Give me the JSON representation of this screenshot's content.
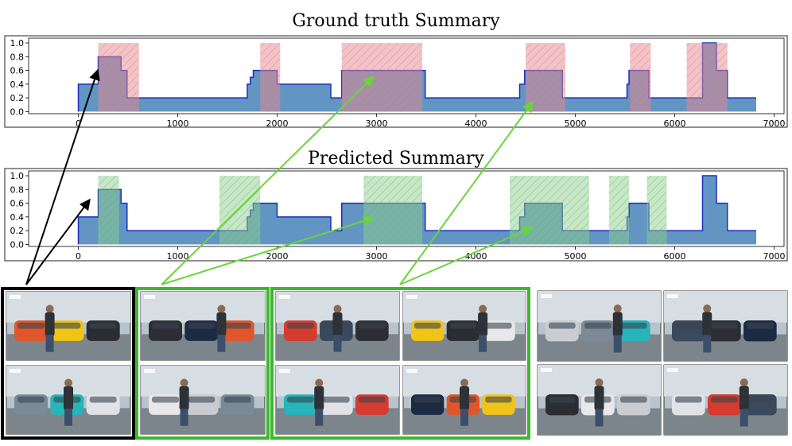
{
  "chart_data": [
    {
      "type": "step",
      "title": "Ground truth Summary",
      "xlabel": "",
      "ylabel": "",
      "xlim": [
        -500,
        7100
      ],
      "ylim": [
        -0.03,
        1.07
      ],
      "xticks": [
        0,
        1000,
        2000,
        3000,
        4000,
        5000,
        6000,
        7000
      ],
      "yticks": [
        0.0,
        0.2,
        0.4,
        0.6,
        0.8,
        1.0
      ],
      "ytick_labels": [
        "0.0",
        "0.2",
        "0.4",
        "0.6",
        "0.8",
        "1.0"
      ],
      "xtick_labels": [
        "0",
        "1000",
        "2000",
        "3000",
        "4000",
        "5000",
        "6000",
        "7000"
      ],
      "grid": false,
      "score_series": {
        "x": [
          0,
          200,
          430,
          490,
          1700,
          1730,
          1760,
          1790,
          2000,
          2060,
          2540,
          2600,
          2650,
          3490,
          4440,
          4490,
          4870,
          5520,
          5540,
          5740,
          6280,
          6310,
          6420,
          6520,
          6530,
          6820
        ],
        "y": [
          0.4,
          0.8,
          0.6,
          0.2,
          0.4,
          0.5,
          0.6,
          0.6,
          0.4,
          0.4,
          0.2,
          0.2,
          0.6,
          0.2,
          0.4,
          0.6,
          0.2,
          0.4,
          0.6,
          0.2,
          1.0,
          1.0,
          0.6,
          0.6,
          0.2,
          0.2
        ]
      },
      "selected_segments": [
        [
          200,
          610
        ],
        [
          1830,
          2030
        ],
        [
          2650,
          3460
        ],
        [
          4500,
          4900
        ],
        [
          5550,
          5760
        ],
        [
          6120,
          6530
        ]
      ],
      "segment_color": "#e8898f"
    },
    {
      "type": "step",
      "title": "Predicted Summary",
      "xlabel": "",
      "ylabel": "",
      "xlim": [
        -500,
        7100
      ],
      "ylim": [
        -0.03,
        1.07
      ],
      "xticks": [
        0,
        1000,
        2000,
        3000,
        4000,
        5000,
        6000,
        7000
      ],
      "yticks": [
        0.0,
        0.2,
        0.4,
        0.6,
        0.8,
        1.0
      ],
      "ytick_labels": [
        "0.0",
        "0.2",
        "0.4",
        "0.6",
        "0.8",
        "1.0"
      ],
      "xtick_labels": [
        "0",
        "1000",
        "2000",
        "3000",
        "4000",
        "5000",
        "6000",
        "7000"
      ],
      "grid": false,
      "score_series": {
        "x": [
          0,
          200,
          430,
          490,
          1700,
          1730,
          1760,
          1790,
          2000,
          2060,
          2540,
          2600,
          2650,
          3490,
          4440,
          4490,
          4870,
          5520,
          5540,
          5740,
          6280,
          6310,
          6420,
          6520,
          6530,
          6820
        ],
        "y": [
          0.4,
          0.8,
          0.6,
          0.2,
          0.4,
          0.5,
          0.6,
          0.6,
          0.4,
          0.4,
          0.2,
          0.2,
          0.6,
          0.2,
          0.4,
          0.6,
          0.2,
          0.4,
          0.6,
          0.2,
          1.0,
          1.0,
          0.6,
          0.6,
          0.2,
          0.2
        ]
      },
      "selected_segments": [
        [
          200,
          410
        ],
        [
          1420,
          1830
        ],
        [
          2870,
          3460
        ],
        [
          4340,
          5140
        ],
        [
          5340,
          5540
        ],
        [
          5720,
          5920
        ]
      ],
      "segment_color": "#8fcf8f"
    }
  ],
  "colors": {
    "score_fill": "#5b8fbf",
    "score_line": "#1a2fc0",
    "black_arrow": "#000000",
    "green_arrow": "#6ad43a",
    "green_frame": "#3cb82f",
    "black_frame": "#000000"
  },
  "thumbnail_groups": [
    {
      "frame": "black",
      "icon": "video-frame",
      "count": 2
    },
    {
      "frame": "green",
      "icon": "video-frame",
      "count": 2
    },
    {
      "frame": "green",
      "icon": "video-frame",
      "count": 4
    },
    {
      "frame": "none",
      "icon": "video-frame",
      "count": 4
    }
  ]
}
